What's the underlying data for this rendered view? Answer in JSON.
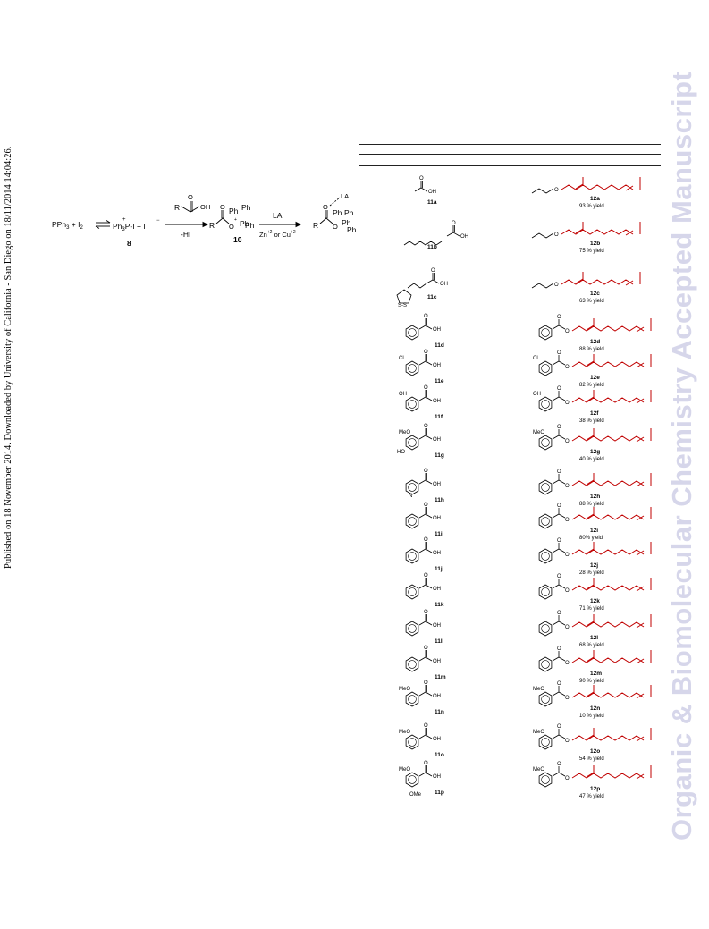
{
  "side_text": "Published on 18 November 2014. Downloaded by University of California - San Diego on 18/11/2014 14:04:26.",
  "watermark": "Organic & Biomolecular Chemistry Accepted Manuscript",
  "scheme": {
    "reactant": "PPh",
    "reactant_sub": "3",
    "iodine": "I",
    "iodine_sub": "2",
    "plus": "+",
    "product_a": "Ph",
    "product_a_sub": "3",
    "product_a_tail": "P-I",
    "iodide": "I",
    "compound_8": "8",
    "acid_r": "R",
    "acid_o": "O",
    "acid_oh": "OH",
    "minus_hi": "-HI",
    "compound_10": "10",
    "ph": "Ph",
    "la": "LA",
    "zn": "Zn",
    "or_cu": "or Cu",
    "charge": "+2",
    "plus_sign": "+",
    "minus_sign": "−"
  },
  "table_rows": [
    {
      "acid": "11a",
      "ester": "12a",
      "yield": "93 % yield"
    },
    {
      "acid": "11b",
      "ester": "12b",
      "yield": "75 % yield"
    },
    {
      "acid": "11c",
      "ester": "12c",
      "yield": "63 % yield"
    },
    {
      "acid": "11d",
      "ester": "12d",
      "yield": "88 % yield"
    },
    {
      "acid": "11e",
      "ester": "12e",
      "yield": "82 % yield"
    },
    {
      "acid": "11f",
      "ester": "12f",
      "yield": "38 % yield"
    },
    {
      "acid": "11g",
      "ester": "12g",
      "yield": "40 % yield"
    },
    {
      "acid": "11h",
      "ester": "12h",
      "yield": "88 % yield"
    },
    {
      "acid": "11i",
      "ester": "12i",
      "yield": "80% yield"
    },
    {
      "acid": "11j",
      "ester": "12j",
      "yield": "28 % yield"
    },
    {
      "acid": "11k",
      "ester": "12k",
      "yield": "71 % yield"
    },
    {
      "acid": "11l",
      "ester": "12l",
      "yield": "68 % yield"
    },
    {
      "acid": "11m",
      "ester": "12m",
      "yield": "90 % yield"
    },
    {
      "acid": "11n",
      "ester": "12n",
      "yield": "10 % yield"
    },
    {
      "acid": "11o",
      "ester": "12o",
      "yield": "54 % yield"
    },
    {
      "acid": "11p",
      "ester": "12p",
      "yield": "47 % yield"
    }
  ],
  "atoms": {
    "oh": "OH",
    "o": "O",
    "meo": "MeO",
    "ho": "HO",
    "cl": "Cl",
    "s": "S",
    "n": "N",
    "ome": "OMe"
  },
  "colors": {
    "chain": "#c00000",
    "ink": "#000000",
    "watermark": "#d6d6ea"
  }
}
